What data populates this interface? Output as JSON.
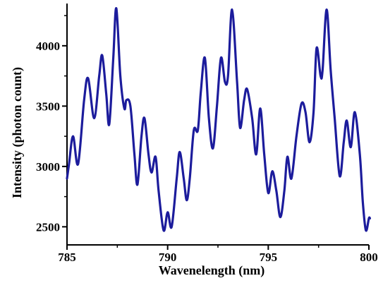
{
  "chart_data": {
    "type": "line",
    "title": "",
    "xlabel": "Wavenelength (nm)",
    "ylabel": "Intensity (photon count)",
    "xlim": [
      785,
      800
    ],
    "ylim": [
      2350,
      4350
    ],
    "x_ticks": [
      785,
      790,
      795,
      800
    ],
    "y_ticks": [
      2500,
      3000,
      3500,
      4000
    ],
    "grid": false,
    "series": [
      {
        "color": "#1c1c9c",
        "points": [
          [
            785.0,
            2900
          ],
          [
            785.1,
            3020
          ],
          [
            785.3,
            3250
          ],
          [
            785.55,
            3020
          ],
          [
            785.85,
            3550
          ],
          [
            786.05,
            3730
          ],
          [
            786.35,
            3400
          ],
          [
            786.6,
            3750
          ],
          [
            786.75,
            3920
          ],
          [
            786.95,
            3600
          ],
          [
            787.1,
            3350
          ],
          [
            787.3,
            3900
          ],
          [
            787.45,
            4310
          ],
          [
            787.65,
            3750
          ],
          [
            787.85,
            3480
          ],
          [
            787.95,
            3550
          ],
          [
            788.15,
            3500
          ],
          [
            788.35,
            3100
          ],
          [
            788.5,
            2850
          ],
          [
            788.7,
            3250
          ],
          [
            788.85,
            3400
          ],
          [
            789.05,
            3100
          ],
          [
            789.2,
            2950
          ],
          [
            789.4,
            3080
          ],
          [
            789.55,
            2800
          ],
          [
            789.8,
            2470
          ],
          [
            790.0,
            2620
          ],
          [
            790.2,
            2500
          ],
          [
            790.45,
            2900
          ],
          [
            790.6,
            3120
          ],
          [
            790.8,
            2900
          ],
          [
            790.95,
            2720
          ],
          [
            791.1,
            2900
          ],
          [
            791.3,
            3300
          ],
          [
            791.5,
            3300
          ],
          [
            791.65,
            3620
          ],
          [
            791.85,
            3900
          ],
          [
            792.05,
            3400
          ],
          [
            792.25,
            3150
          ],
          [
            792.45,
            3500
          ],
          [
            792.65,
            3900
          ],
          [
            792.85,
            3700
          ],
          [
            793.0,
            3750
          ],
          [
            793.2,
            4300
          ],
          [
            793.45,
            3700
          ],
          [
            793.6,
            3320
          ],
          [
            793.8,
            3550
          ],
          [
            793.95,
            3640
          ],
          [
            794.2,
            3400
          ],
          [
            794.4,
            3100
          ],
          [
            794.6,
            3480
          ],
          [
            794.8,
            3100
          ],
          [
            795.0,
            2780
          ],
          [
            795.2,
            2960
          ],
          [
            795.4,
            2800
          ],
          [
            795.6,
            2580
          ],
          [
            795.8,
            2800
          ],
          [
            795.95,
            3080
          ],
          [
            796.15,
            2900
          ],
          [
            796.4,
            3250
          ],
          [
            796.65,
            3520
          ],
          [
            796.85,
            3450
          ],
          [
            797.05,
            3200
          ],
          [
            797.25,
            3450
          ],
          [
            797.4,
            3980
          ],
          [
            797.6,
            3750
          ],
          [
            797.7,
            3800
          ],
          [
            797.9,
            4300
          ],
          [
            798.1,
            3800
          ],
          [
            798.3,
            3400
          ],
          [
            798.55,
            2920
          ],
          [
            798.75,
            3200
          ],
          [
            798.9,
            3380
          ],
          [
            799.1,
            3160
          ],
          [
            799.3,
            3450
          ],
          [
            799.55,
            3100
          ],
          [
            799.7,
            2700
          ],
          [
            799.85,
            2470
          ],
          [
            800.0,
            2570
          ],
          [
            800.05,
            2570
          ]
        ]
      }
    ]
  }
}
